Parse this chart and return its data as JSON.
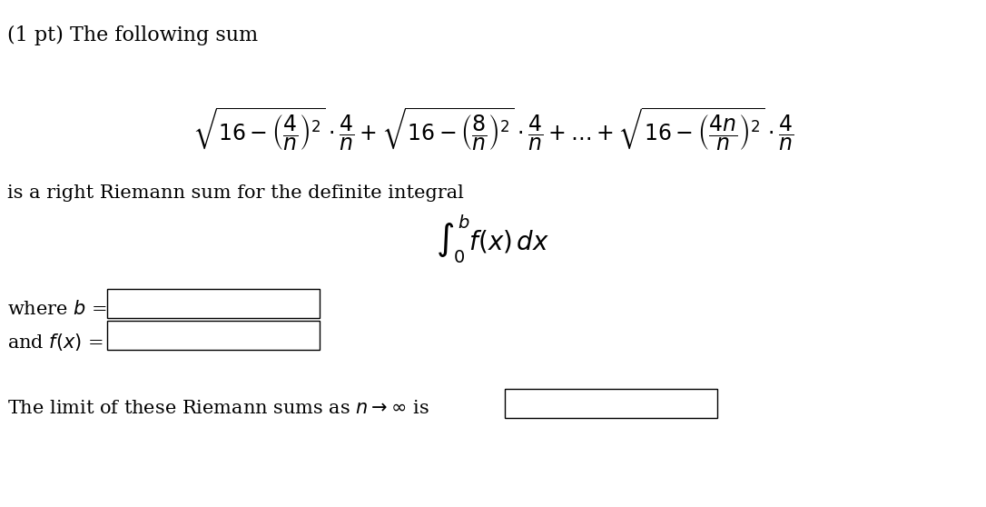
{
  "background_color": "#ffffff",
  "title_text": "(1 pt) The following sum",
  "formula_main": "\\sqrt{16-\\left(\\frac{4}{n}\\right)^{2}}\\cdot\\frac{4}{n}+\\sqrt{16-\\left(\\frac{8}{n}\\right)^{2}}\\cdot\\frac{4}{n}+\\ldots+\\sqrt{16-\\left(\\frac{4n}{n}\\right)^{2}}\\cdot\\frac{4}{n}",
  "text_riemann": "is a right Riemann sum for the definite integral",
  "formula_integral": "\\int_0^b f(x)\\,dx",
  "text_where_b": "where $b$ =",
  "text_and_f": "and $f(x)$ =",
  "text_limit": "The limit of these Riemann sums as $n \\rightarrow \\infty$ is",
  "box_color": "#ffffff",
  "box_edge_color": "#000000",
  "font_size_title": 16,
  "font_size_formula": 17,
  "font_size_text": 15,
  "fig_width": 10.86,
  "fig_height": 5.58
}
